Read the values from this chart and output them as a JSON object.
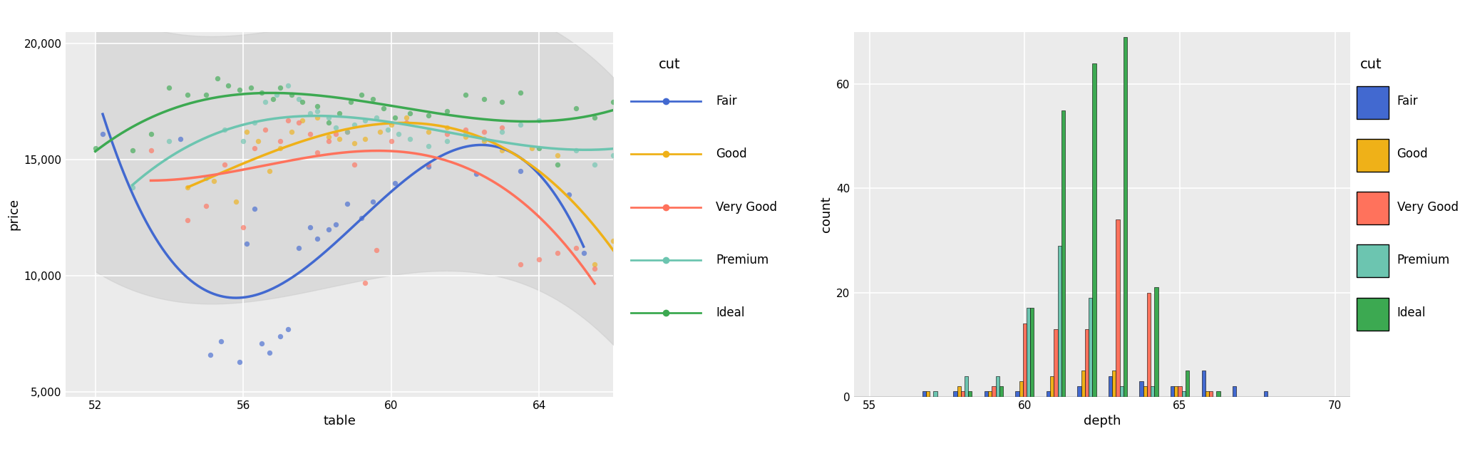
{
  "cut_order": [
    "Fair",
    "Good",
    "Very Good",
    "Premium",
    "Ideal"
  ],
  "colors": {
    "Fair": "#4269d0",
    "Good": "#efb118",
    "Very Good": "#ff725c",
    "Premium": "#6cc5b0",
    "Ideal": "#3ca951"
  },
  "scatter_xlim": [
    51.2,
    66.0
  ],
  "scatter_ylim": [
    4800,
    20500
  ],
  "scatter_xticks": [
    52,
    56,
    60,
    64
  ],
  "scatter_yticks": [
    5000,
    10000,
    15000,
    20000
  ],
  "hist_xlim": [
    54.5,
    70.5
  ],
  "hist_ylim": [
    0,
    70
  ],
  "hist_xticks": [
    55,
    60,
    65,
    70
  ],
  "hist_yticks": [
    0,
    20,
    40,
    60
  ],
  "panel_bg": "#ebebeb",
  "grid_color": "white",
  "axis_label_font": 13,
  "tick_font": 11,
  "legend_title_font": 14,
  "legend_font": 12,
  "scatter_data": {
    "Fair": {
      "table": [
        52.2,
        54.3,
        55.1,
        55.4,
        55.9,
        56.1,
        56.3,
        56.5,
        56.7,
        57.0,
        57.2,
        57.5,
        57.8,
        58.0,
        58.3,
        58.5,
        58.8,
        59.2,
        59.5,
        60.1,
        61.0,
        62.3,
        63.5,
        64.8,
        65.2
      ],
      "price": [
        16100,
        15900,
        6600,
        7200,
        6300,
        11400,
        12900,
        7100,
        6700,
        7400,
        7700,
        11200,
        12100,
        11600,
        12000,
        12200,
        13100,
        12500,
        13200,
        14000,
        14700,
        14400,
        14500,
        13500,
        11000
      ]
    },
    "Good": {
      "table": [
        54.5,
        55.2,
        55.8,
        56.1,
        56.4,
        56.7,
        57.0,
        57.3,
        57.6,
        58.0,
        58.3,
        58.6,
        59.0,
        59.3,
        59.7,
        60.0,
        60.4,
        61.0,
        61.5,
        62.0,
        62.5,
        63.0,
        63.8,
        64.5,
        65.5,
        66.0
      ],
      "price": [
        13800,
        14100,
        13200,
        16200,
        15800,
        14500,
        15500,
        16200,
        16700,
        16800,
        16000,
        15900,
        15700,
        15900,
        16200,
        16500,
        16800,
        16200,
        16400,
        16000,
        15800,
        15400,
        15500,
        15200,
        10500,
        11500
      ]
    },
    "Very Good": {
      "table": [
        53.5,
        54.5,
        55.0,
        55.5,
        56.0,
        56.3,
        56.6,
        57.0,
        57.2,
        57.5,
        57.8,
        58.0,
        58.3,
        58.5,
        58.8,
        59.0,
        59.3,
        59.6,
        60.0,
        60.4,
        61.0,
        61.5,
        62.0,
        62.5,
        63.0,
        63.5,
        64.0,
        64.5,
        65.0,
        65.5
      ],
      "price": [
        15400,
        12400,
        13000,
        14800,
        12100,
        15500,
        16300,
        15800,
        16700,
        16600,
        16100,
        15300,
        15800,
        16100,
        16200,
        14800,
        9700,
        11100,
        15800,
        16600,
        14800,
        16100,
        16300,
        16200,
        16400,
        10500,
        10700,
        11000,
        11200,
        10300
      ]
    },
    "Premium": {
      "table": [
        53.0,
        54.0,
        55.0,
        55.5,
        56.0,
        56.3,
        56.6,
        56.9,
        57.2,
        57.5,
        57.8,
        58.0,
        58.3,
        58.5,
        58.8,
        59.0,
        59.3,
        59.6,
        59.9,
        60.2,
        60.5,
        61.0,
        61.5,
        62.0,
        62.5,
        63.0,
        63.5,
        64.0,
        65.0,
        65.5,
        66.0
      ],
      "price": [
        13800,
        15800,
        14200,
        16300,
        15800,
        16600,
        17500,
        17800,
        18200,
        17600,
        17000,
        17100,
        16800,
        16400,
        16200,
        16500,
        16700,
        16800,
        16300,
        16100,
        15900,
        15600,
        15800,
        16100,
        15900,
        16200,
        16500,
        16700,
        15400,
        14800,
        15200
      ]
    },
    "Ideal": {
      "table": [
        52.0,
        53.0,
        53.5,
        54.0,
        54.5,
        55.0,
        55.3,
        55.6,
        55.9,
        56.2,
        56.5,
        56.8,
        57.0,
        57.3,
        57.6,
        58.0,
        58.3,
        58.6,
        58.9,
        59.2,
        59.5,
        59.8,
        60.1,
        60.5,
        61.0,
        61.5,
        62.0,
        62.5,
        63.0,
        63.5,
        64.0,
        64.5,
        65.0,
        65.5,
        66.0
      ],
      "price": [
        15500,
        15400,
        16100,
        18100,
        17800,
        17800,
        18500,
        18200,
        18000,
        18100,
        17900,
        17600,
        18100,
        17800,
        17500,
        17300,
        16600,
        17000,
        17500,
        17800,
        17600,
        17200,
        16800,
        17000,
        16900,
        17100,
        17800,
        17600,
        17500,
        17900,
        15500,
        14800,
        17200,
        16800,
        17500
      ]
    }
  },
  "hist_counts": {
    "Fair": {
      "57": 1,
      "58": 1,
      "59": 1,
      "60": 1,
      "61": 1,
      "62": 2,
      "63": 4,
      "64": 3,
      "65": 2,
      "66": 5,
      "67": 2,
      "68": 1
    },
    "Good": {
      "57": 1,
      "58": 2,
      "59": 1,
      "60": 3,
      "61": 4,
      "62": 5,
      "63": 5,
      "64": 2,
      "65": 2,
      "66": 1
    },
    "Very Good": {
      "58": 1,
      "59": 2,
      "60": 14,
      "61": 13,
      "62": 13,
      "63": 34,
      "64": 20,
      "65": 2,
      "66": 1
    },
    "Premium": {
      "57": 1,
      "58": 4,
      "59": 4,
      "60": 17,
      "61": 29,
      "62": 19,
      "63": 2,
      "64": 2,
      "65": 1
    },
    "Ideal": {
      "58": 1,
      "59": 2,
      "60": 17,
      "61": 55,
      "62": 64,
      "63": 69,
      "64": 21,
      "65": 5,
      "66": 1
    }
  }
}
